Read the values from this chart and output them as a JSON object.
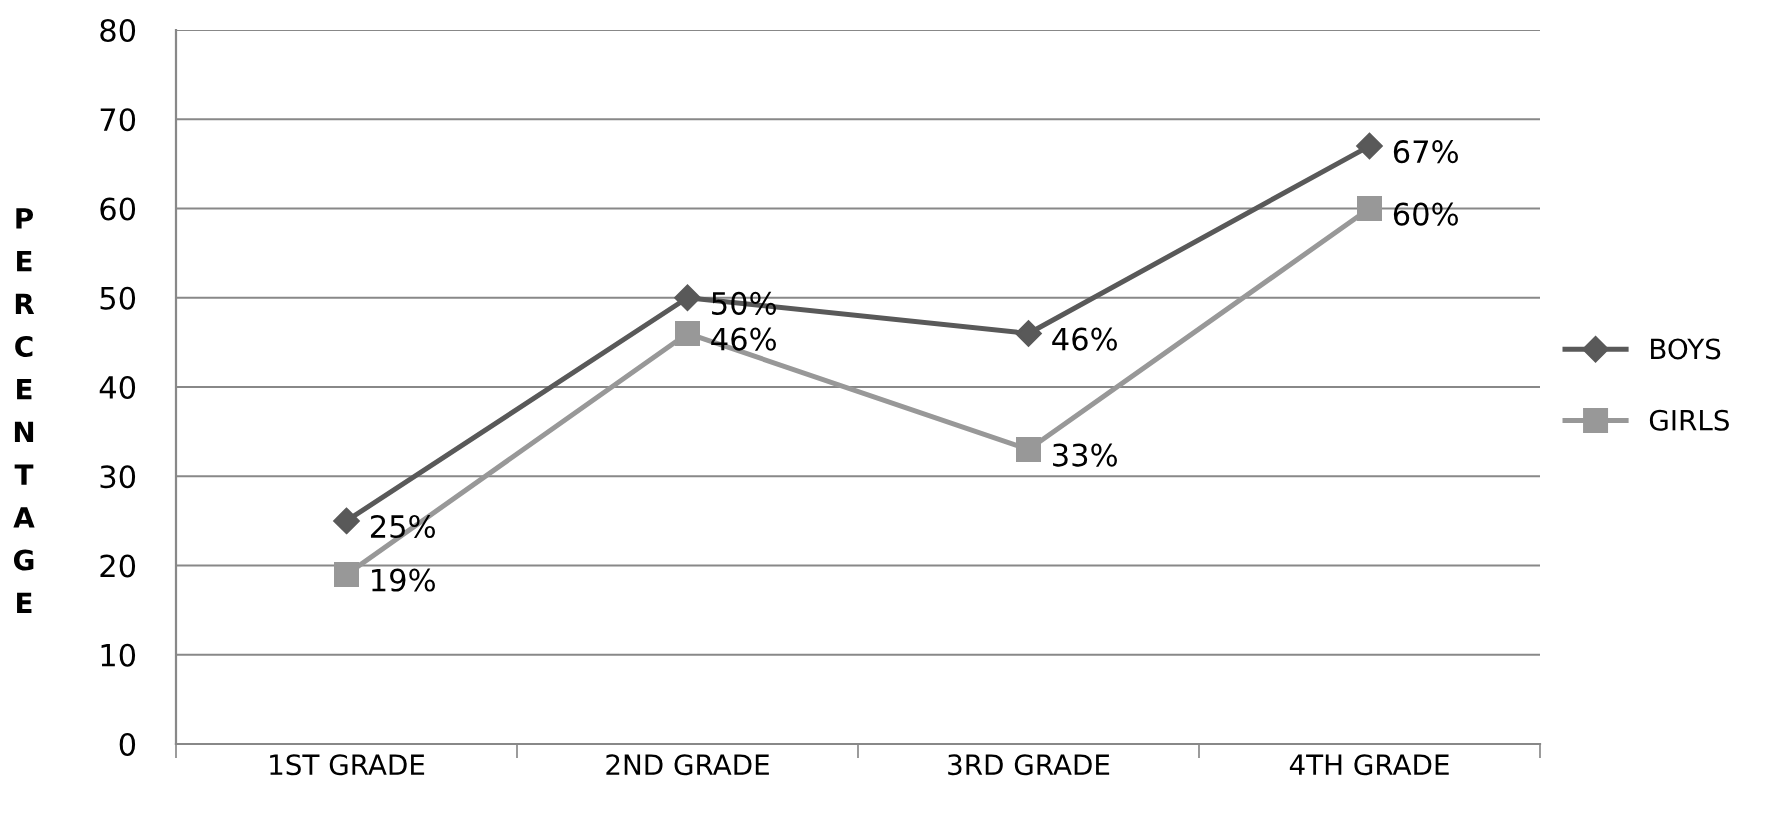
{
  "chart_data": {
    "type": "line",
    "ylabel": "PERCENTAGE",
    "categories": [
      "1ST GRADE",
      "2ND GRADE",
      "3RD GRADE",
      "4TH GRADE"
    ],
    "series": [
      {
        "name": "BOYS",
        "color": "#595959",
        "marker": "diamond",
        "values": [
          25,
          50,
          46,
          67
        ],
        "value_labels": [
          "25%",
          "50%",
          "46%",
          "67%"
        ]
      },
      {
        "name": "GIRLS",
        "color": "#989898",
        "marker": "square",
        "values": [
          19,
          46,
          33,
          60
        ],
        "value_labels": [
          "19%",
          "46%",
          "33%",
          "60%"
        ]
      }
    ],
    "ylim": [
      0,
      80
    ],
    "yticks": [
      0,
      10,
      20,
      30,
      40,
      50,
      60,
      70,
      80
    ],
    "grid": "y",
    "legend": "right"
  }
}
